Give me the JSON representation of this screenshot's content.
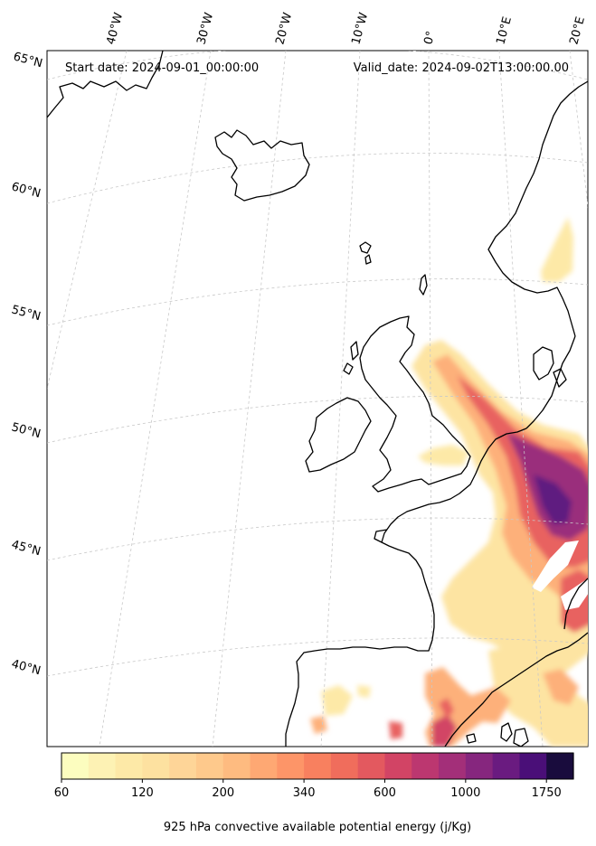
{
  "header": {
    "start_date": "Start date: 2024-09-01_00:00:00",
    "valid_date": "Valid_date: 2024-09-02T13:00:00.00"
  },
  "longitude_labels": [
    "40°W",
    "30°W",
    "20°W",
    "10°W",
    "0°",
    "10°E",
    "20°E"
  ],
  "latitude_labels": [
    "65°N",
    "60°N",
    "55°N",
    "50°N",
    "45°N",
    "40°N"
  ],
  "colorbar": {
    "ticks": [
      "60",
      "120",
      "200",
      "340",
      "600",
      "1000",
      "1750"
    ],
    "title": "925 hPa convective available potential energy (j/Kg)",
    "colors": [
      "#fcfdbf",
      "#fdf2b4",
      "#fde9a7",
      "#fde1a0",
      "#fed598",
      "#fec98c",
      "#febb80",
      "#fea873",
      "#fd9568",
      "#f8805f",
      "#f06d5c",
      "#e3595f",
      "#d24465",
      "#bc3770",
      "#a32f79",
      "#86267e",
      "#6a1b80",
      "#4a0f78",
      "#190c3d"
    ]
  }
}
